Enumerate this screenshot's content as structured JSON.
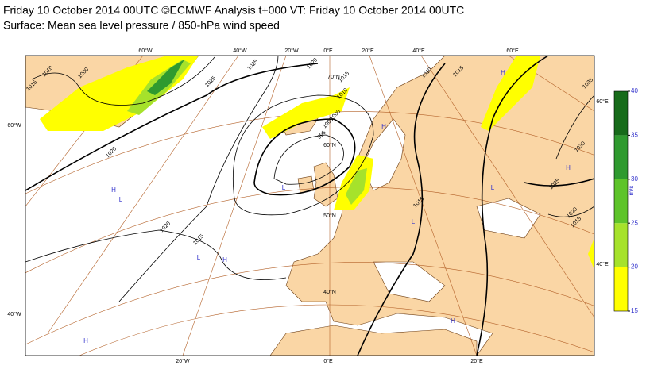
{
  "header": {
    "title": "Friday 10 October 2014 00UTC ©ECMWF Analysis t+000 VT: Friday 10 October 2014 00UTC",
    "subtitle": "Surface: Mean sea level pressure / 850-hPa wind speed"
  },
  "map": {
    "graticule_labels": [
      "60°W",
      "40°W",
      "20°W",
      "0°E",
      "20°E",
      "40°E",
      "60°E",
      "20°W",
      "0°E",
      "20°E",
      "60°W",
      "40°W",
      "60°E",
      "40°E",
      "70°N",
      "60°N",
      "50°N",
      "40°N"
    ],
    "isobar_labels": [
      "1015",
      "1010",
      "1000",
      "1025",
      "1025",
      "1020",
      "1015",
      "1010",
      "1005",
      "1000",
      "995",
      "1020",
      "1020",
      "1015",
      "1015",
      "1020",
      "1015",
      "1025",
      "1030",
      "1035",
      "1015",
      "1010"
    ],
    "pressure_centers": [
      "H",
      "L",
      "H",
      "L",
      "L",
      "H",
      "H",
      "L",
      "H",
      "H",
      "L",
      "H"
    ]
  },
  "colorbar": {
    "unit": "m/s",
    "ticks": [
      15,
      20,
      25,
      30,
      35,
      40
    ],
    "colors": [
      "#ffff00",
      "#a6e22b",
      "#5ec42a",
      "#2f9a2f",
      "#176b1a"
    ]
  }
}
